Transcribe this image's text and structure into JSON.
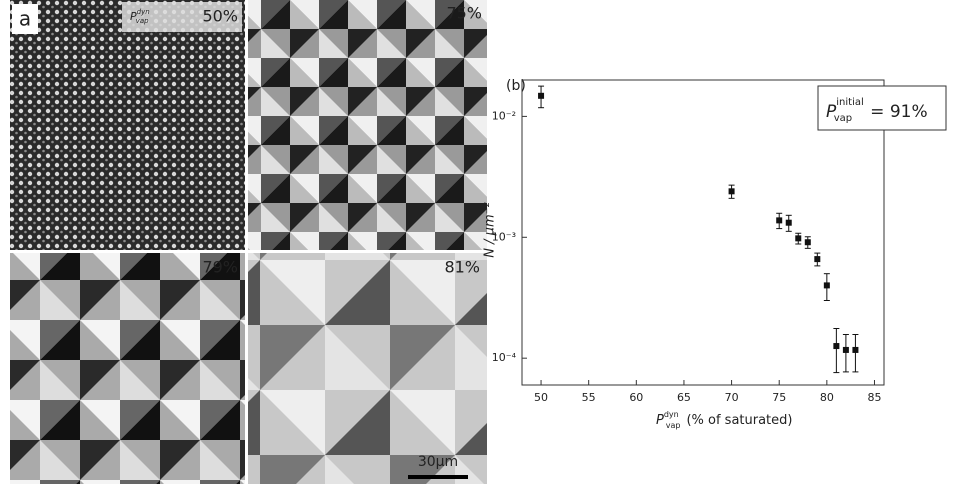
{
  "panel_a": {
    "label": "a",
    "quadrant_labels": [
      "50%",
      "75%",
      "79%",
      "81%"
    ],
    "inset_label": {
      "symbol": "P",
      "superscript": "dyn",
      "subscript": "vap"
    },
    "scale_bar": "30μm"
  },
  "chart_data": {
    "type": "scatter",
    "panel_label": "(b)",
    "x": [
      50,
      70,
      75,
      76,
      77,
      78,
      79,
      80,
      81,
      82,
      83
    ],
    "values": [
      0.0148,
      0.0024,
      0.00138,
      0.00132,
      0.00098,
      0.00091,
      0.00066,
      0.0004,
      0.000126,
      0.000117,
      0.000117
    ],
    "errors": [
      0.003,
      0.0003,
      0.0002,
      0.0002,
      0.0001,
      0.0001,
      8e-05,
      0.0001,
      5e-05,
      4e-05,
      4e-05
    ],
    "color": "#111111",
    "xlim": [
      48,
      86
    ],
    "xticks": [
      50,
      55,
      60,
      65,
      70,
      75,
      80,
      85
    ],
    "ylim": [
      6e-05,
      0.02
    ],
    "log_y": true,
    "yticks": [
      {
        "value": 0.01,
        "label": "10⁻²"
      },
      {
        "value": 0.001,
        "label": "10⁻³"
      },
      {
        "value": 0.0001,
        "label": "10⁻⁴"
      }
    ],
    "ylabel": "N / μm⁻²",
    "xlabel": {
      "symbol": "P",
      "superscript": "dyn",
      "subscript": "vap",
      "text": "(% of saturated)"
    },
    "annotation": {
      "symbol": "P",
      "superscript": "initial",
      "subscript": "vap",
      "text": "= 91%"
    }
  }
}
